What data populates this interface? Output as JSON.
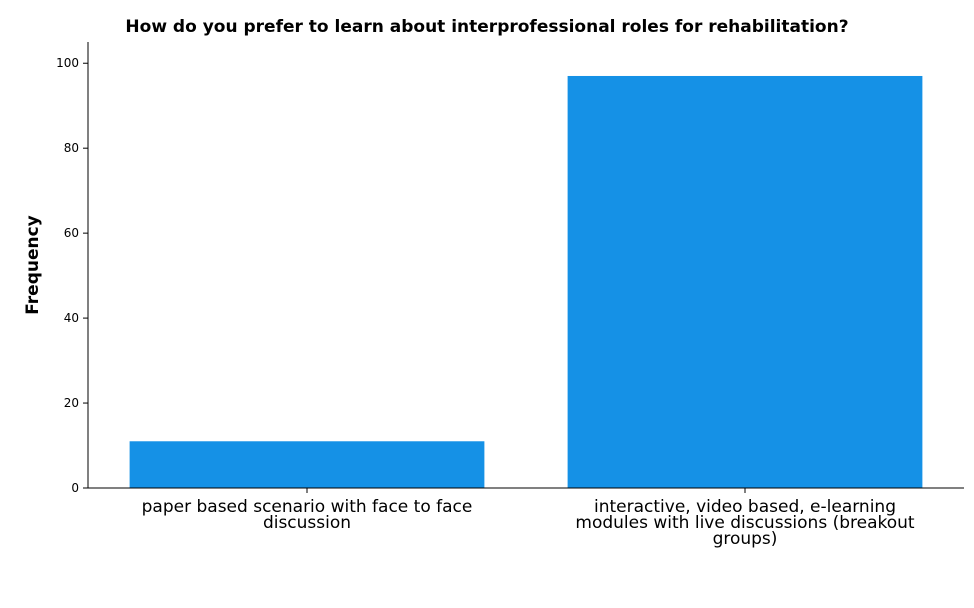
{
  "colors": {
    "bar": "#1591E6"
  },
  "chart_data": {
    "type": "bar",
    "title": "How do you prefer to learn about interprofessional roles for rehabilitation?",
    "xlabel": "",
    "ylabel": "Frequency",
    "ylim": [
      0,
      105
    ],
    "yticks": [
      0,
      20,
      40,
      60,
      80,
      100
    ],
    "grid": false,
    "categories": [
      [
        "paper based scenario with face to face",
        "discussion"
      ],
      [
        "interactive, video based, e-learning",
        "modules with live discussions (breakout",
        "groups)"
      ]
    ],
    "values": [
      11,
      97
    ]
  }
}
